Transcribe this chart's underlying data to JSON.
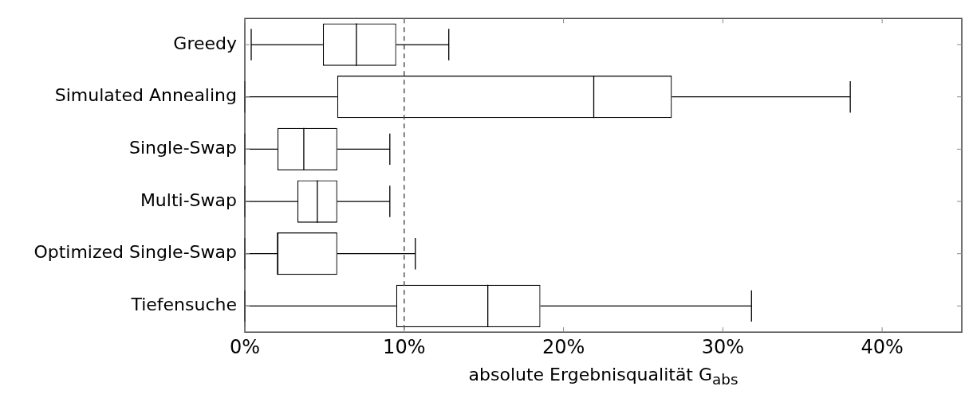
{
  "chart_data": {
    "type": "box",
    "xlabel": "absolute Ergebnisqualität G$_{abs}$",
    "orientation": "horizontal",
    "categories": [
      "Greedy",
      "Simulated Annealing",
      "Single-Swap",
      "Multi-Swap",
      "Optimized Single-Swap",
      "Tiefensuche"
    ],
    "boxes": [
      {
        "low": 0.4,
        "q1": 4.9,
        "median": 7.0,
        "q3": 9.5,
        "high": 12.8
      },
      {
        "low": 0,
        "q1": 5.8,
        "median": 21.9,
        "q3": 26.8,
        "high": 38.0
      },
      {
        "low": 0,
        "q1": 2.05,
        "median": 3.7,
        "q3": 5.8,
        "high": 9.1
      },
      {
        "low": 0,
        "q1": 3.3,
        "median": 4.55,
        "q3": 5.8,
        "high": 9.1
      },
      {
        "low": 0,
        "q1": 2.05,
        "median": 2.05,
        "q3": 5.8,
        "high": 10.7
      },
      {
        "low": 0,
        "q1": 9.5,
        "median": 15.25,
        "q3": 18.55,
        "high": 31.8
      }
    ],
    "xlim": [
      0,
      45
    ],
    "xticks": [
      {
        "value": 0,
        "label": "0%"
      },
      {
        "value": 10,
        "label": "10%"
      },
      {
        "value": 20,
        "label": "20%"
      },
      {
        "value": 30,
        "label": "30%"
      },
      {
        "value": 40,
        "label": "40%"
      }
    ],
    "ref_lines": [
      {
        "axis": "x",
        "value": 10,
        "line_style": "dashed",
        "color": "#555555"
      }
    ],
    "grid": false,
    "legend": false
  }
}
